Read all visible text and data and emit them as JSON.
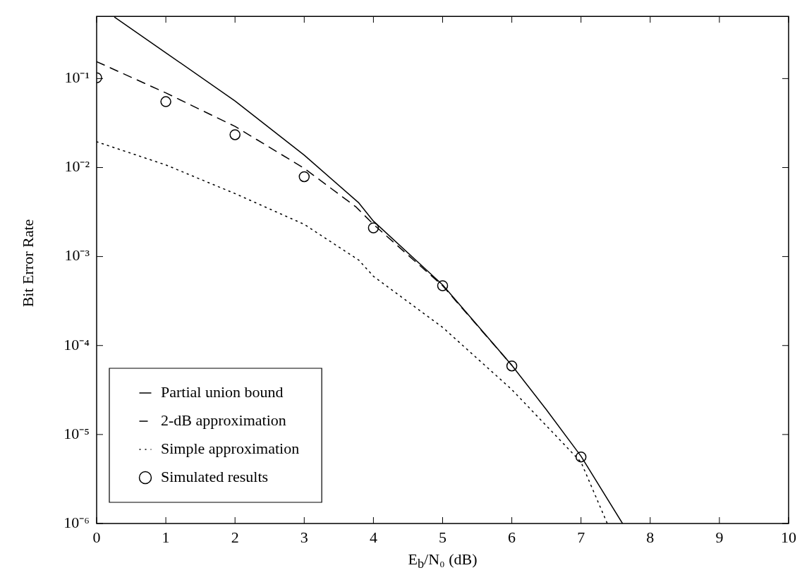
{
  "chart_data": {
    "type": "line",
    "xlabel": "E$_{b}$/N₀ (dB)",
    "ylabel": "Bit Error Rate",
    "xlim": [
      0,
      10
    ],
    "xticks": [
      0,
      1,
      2,
      3,
      4,
      5,
      6,
      7,
      8,
      9,
      10
    ],
    "ylim": [
      1e-06,
      0.5
    ],
    "log": "y",
    "yticks": [
      {
        "value": 1e-06,
        "label": "10⁻⁶"
      },
      {
        "value": 1e-05,
        "label": "10⁻⁵"
      },
      {
        "value": 0.0001,
        "label": "10⁻⁴"
      },
      {
        "value": 0.001,
        "label": "10⁻³"
      },
      {
        "value": 0.01,
        "label": "10⁻²"
      },
      {
        "value": 0.1,
        "label": "10⁻¹"
      }
    ],
    "legend": "bottom left",
    "series": [
      {
        "name": "Partial union bound",
        "type": "line",
        "line_style": "solid",
        "marker": "none",
        "color": "#000000",
        "x": [
          0.26,
          1,
          2,
          3,
          3.79,
          4,
          5,
          5.5,
          6,
          6.5,
          7,
          7.6
        ],
        "values": [
          0.49,
          0.195,
          0.056,
          0.0138,
          0.004,
          0.0025,
          0.00048,
          0.00017,
          6e-05,
          1.9e-05,
          5.7e-06,
          1e-06
        ]
      },
      {
        "name": "2-dB approximation",
        "type": "line",
        "line_style": "dashed",
        "marker": "none",
        "color": "#000000",
        "x": [
          0,
          1,
          2,
          3,
          3.75,
          4,
          5,
          6
        ],
        "values": [
          0.155,
          0.069,
          0.029,
          0.0098,
          0.0036,
          0.0023,
          0.00047,
          6e-05
        ]
      },
      {
        "name": "Simple approximation",
        "type": "line",
        "line_style": "dotted",
        "marker": "none",
        "color": "#000000",
        "x": [
          0,
          1,
          2,
          3,
          3.79,
          4,
          5,
          6,
          7,
          7.38
        ],
        "values": [
          0.0195,
          0.0107,
          0.0051,
          0.0023,
          0.00091,
          0.0006,
          0.00016,
          3.2e-05,
          4.9e-06,
          1e-06
        ]
      },
      {
        "name": "Simulated results",
        "type": "scatter",
        "marker": "circle",
        "color": "#000000",
        "x": [
          0,
          1,
          2,
          3,
          4,
          5,
          6,
          7
        ],
        "values": [
          0.102,
          0.055,
          0.0234,
          0.0079,
          0.0021,
          0.00047,
          5.9e-05,
          5.6e-06
        ]
      }
    ]
  }
}
